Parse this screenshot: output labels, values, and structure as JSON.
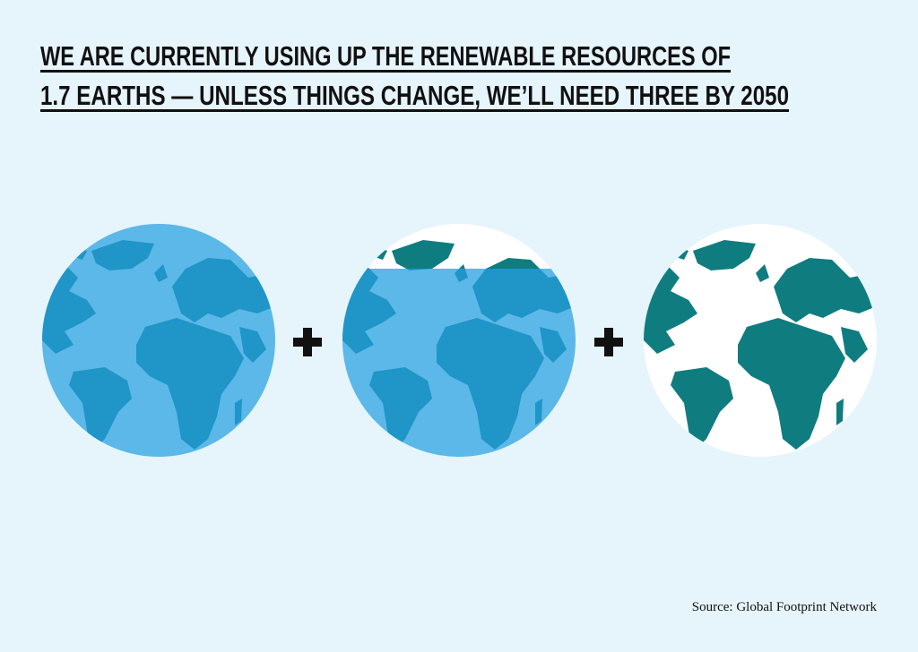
{
  "header": {
    "title_lines": [
      "WE ARE CURRENTLY USING UP THE RENEWABLE RESOURCES OF",
      "1.7 EARTHS — UNLESS THINGS CHANGE, WE’LL NEED THREE BY 2050"
    ]
  },
  "footer": {
    "source": "Source: Global Footprint Network"
  }
}
